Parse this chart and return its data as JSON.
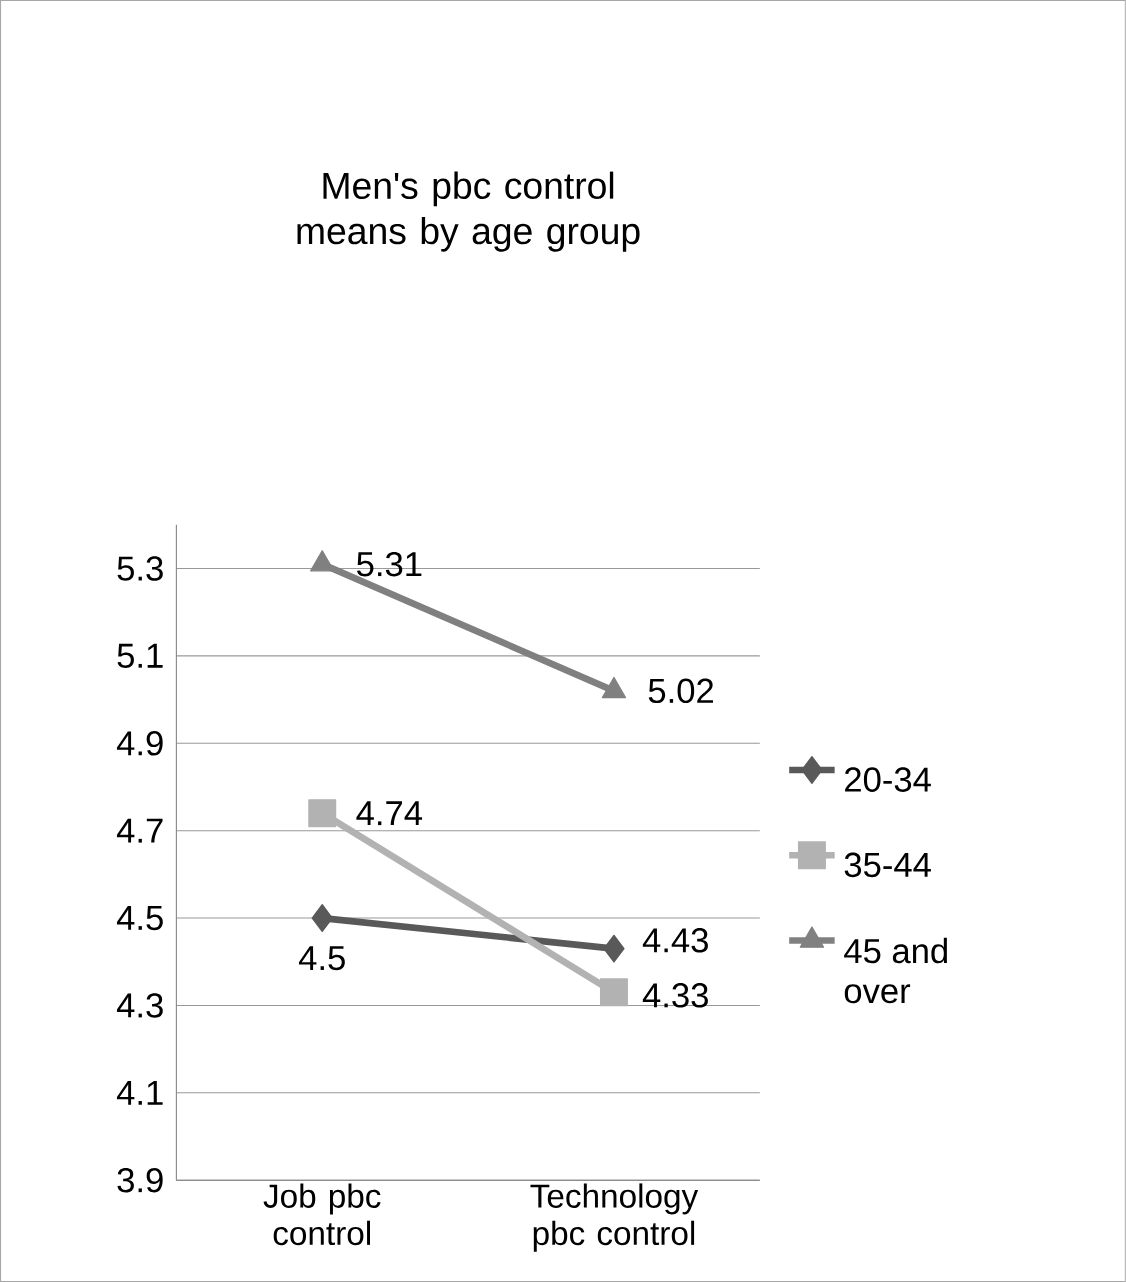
{
  "chart_data": {
    "type": "line",
    "title": "Men's pbc control means by age group",
    "categories": [
      "Job pbc control",
      "Technology pbc control"
    ],
    "series": [
      {
        "name": "20-34",
        "color": "#595959",
        "marker": "diamond",
        "values": [
          4.5,
          4.43
        ]
      },
      {
        "name": "35-44",
        "color": "#b2b2b2",
        "marker": "square",
        "values": [
          4.74,
          4.33
        ]
      },
      {
        "name": "45 and over",
        "color": "#808080",
        "marker": "triangle",
        "values": [
          5.31,
          5.02
        ]
      }
    ],
    "ylim": [
      3.9,
      5.4
    ],
    "yticks": [
      3.9,
      4.1,
      4.3,
      4.5,
      4.7,
      4.9,
      5.1,
      5.3
    ],
    "grid": "y",
    "legend": "right",
    "data_labels": true
  }
}
